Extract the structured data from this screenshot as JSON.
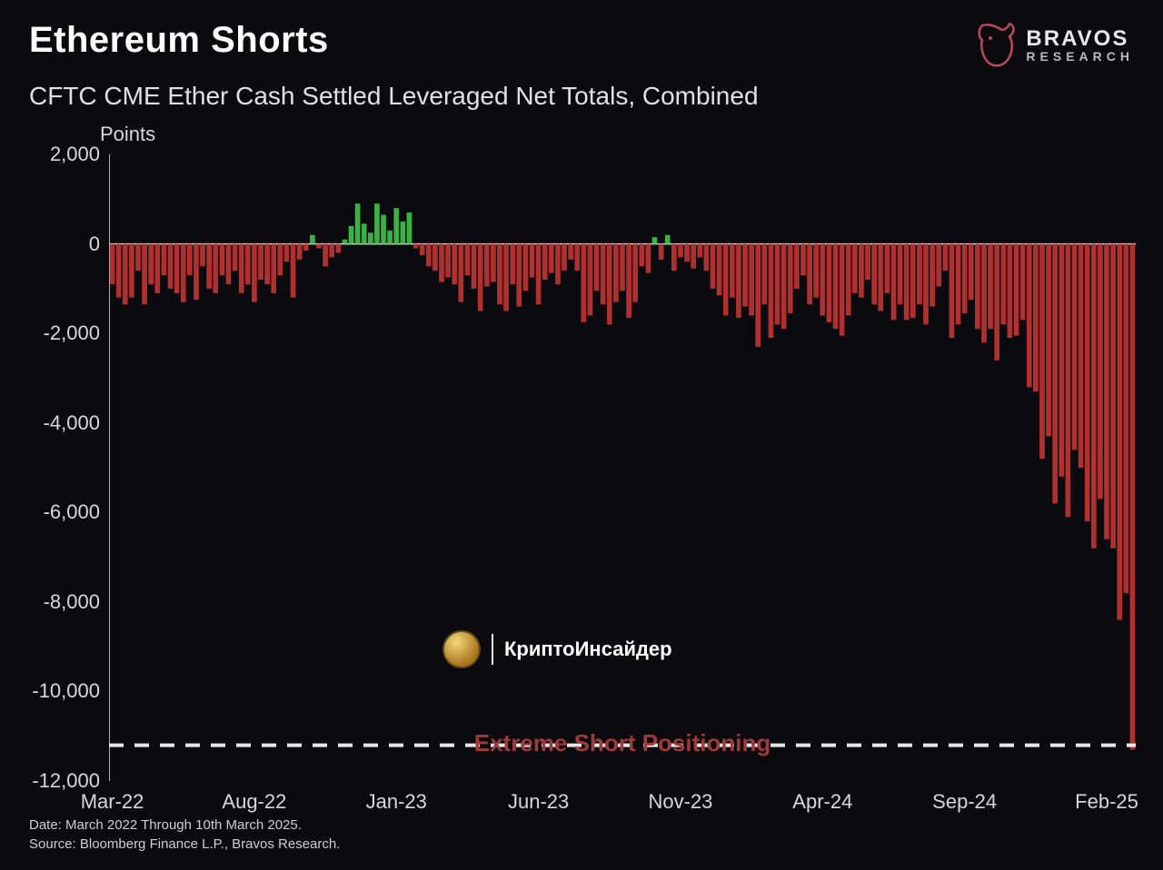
{
  "header": {
    "title": "Ethereum Shorts",
    "logo_main": "BRAVOS",
    "logo_sub": "RESEARCH"
  },
  "subtitle": "CFTC CME Ether Cash Settled Leveraged Net Totals, Combined",
  "ylabel": "Points",
  "footer": {
    "line1": "Date: March 2022 Through 10th March 2025.",
    "line2": "Source: Bloomberg Finance L.P., Bravos Research."
  },
  "watermark": {
    "text": "КриптоИнсайдер"
  },
  "chart": {
    "type": "bar",
    "background_color": "#0a0a0f",
    "positive_color": "#3cb043",
    "negative_color": "#b03030",
    "axis_color": "#e8e8e8",
    "tick_fontsize": 22,
    "bar_gap_ratio": 0.2,
    "ylim": [
      -12000,
      2000
    ],
    "ytick_step": 2000,
    "yticks": [
      2000,
      0,
      -2000,
      -4000,
      -6000,
      -8000,
      -10000,
      -12000
    ],
    "ytick_labels": [
      "2,000",
      "0",
      "-2,000",
      "-4,000",
      "-6,000",
      "-8,000",
      "-10,000",
      "-12,000"
    ],
    "xticks": [
      {
        "label": "Mar-22",
        "index": 0
      },
      {
        "label": "Aug-22",
        "index": 22
      },
      {
        "label": "Jan-23",
        "index": 44
      },
      {
        "label": "Jun-23",
        "index": 66
      },
      {
        "label": "Nov-23",
        "index": 88
      },
      {
        "label": "Apr-24",
        "index": 110
      },
      {
        "label": "Sep-24",
        "index": 132
      },
      {
        "label": "Feb-25",
        "index": 154
      }
    ],
    "annotation": {
      "text": "Extreme Short Positioning",
      "color": "#9e3a3a",
      "y_value": -11000,
      "dashed_line_y": -11200
    },
    "values": [
      -900,
      -1200,
      -1350,
      -1200,
      -600,
      -1350,
      -900,
      -1100,
      -700,
      -1000,
      -1100,
      -1300,
      -700,
      -1250,
      -500,
      -1000,
      -1100,
      -700,
      -900,
      -600,
      -1100,
      -900,
      -1300,
      -800,
      -900,
      -1100,
      -700,
      -400,
      -1200,
      -350,
      -150,
      200,
      -100,
      -500,
      -300,
      -200,
      100,
      400,
      900,
      450,
      250,
      900,
      650,
      300,
      800,
      500,
      700,
      -100,
      -250,
      -500,
      -600,
      -850,
      -750,
      -900,
      -1300,
      -700,
      -1000,
      -1500,
      -950,
      -850,
      -1350,
      -1500,
      -900,
      -1400,
      -1050,
      -750,
      -1350,
      -800,
      -650,
      -900,
      -600,
      -350,
      -600,
      -1750,
      -1600,
      -1050,
      -1350,
      -1800,
      -1300,
      -1050,
      -1650,
      -1300,
      -500,
      -650,
      150,
      -350,
      200,
      -600,
      -300,
      -400,
      -550,
      -300,
      -600,
      -1000,
      -1150,
      -1600,
      -1200,
      -1650,
      -1400,
      -1600,
      -2300,
      -1350,
      -2100,
      -1800,
      -1900,
      -1550,
      -1000,
      -700,
      -1350,
      -1200,
      -1600,
      -1750,
      -1900,
      -2050,
      -1600,
      -1100,
      -1200,
      -800,
      -1350,
      -1500,
      -1100,
      -1700,
      -1350,
      -1700,
      -1650,
      -1350,
      -1800,
      -1400,
      -950,
      -600,
      -2100,
      -1800,
      -1550,
      -1250,
      -1900,
      -2200,
      -1900,
      -2600,
      -1800,
      -2100,
      -2050,
      -1700,
      -3200,
      -3300,
      -4800,
      -4300,
      -5800,
      -5200,
      -6100,
      -4600,
      -5000,
      -6200,
      -6800,
      -5700,
      -6600,
      -6800,
      -8400,
      -7800,
      -11300
    ]
  }
}
